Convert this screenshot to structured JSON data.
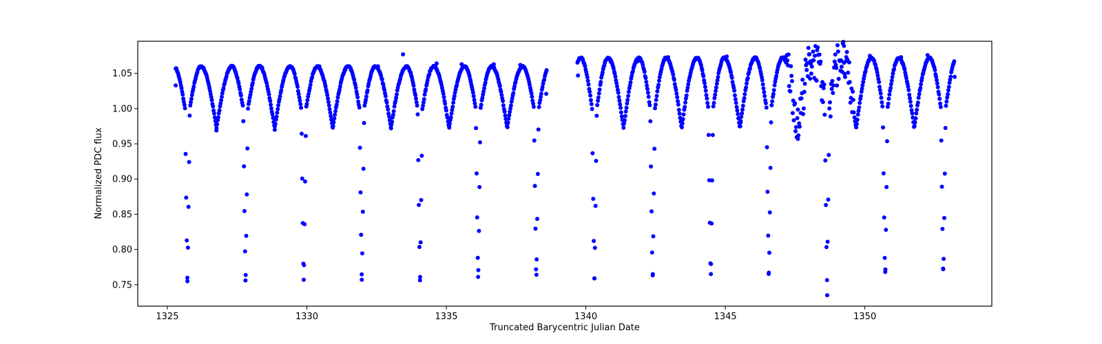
{
  "chart_data": {
    "type": "scatter",
    "title": "",
    "xlabel": "Truncated Barycentric Julian Date",
    "ylabel": "Normalized PDC flux",
    "xlim": [
      1323.94,
      1354.55
    ],
    "ylim": [
      0.7195,
      1.0956
    ],
    "xticks": [
      1325,
      1330,
      1335,
      1340,
      1345,
      1350
    ],
    "xtick_labels": [
      "1325",
      "1330",
      "1335",
      "1340",
      "1345",
      "1350"
    ],
    "yticks": [
      0.75,
      0.8,
      0.85,
      0.9,
      0.95,
      1.0,
      1.05
    ],
    "ytick_labels": [
      "0.75",
      "0.80",
      "0.85",
      "0.90",
      "0.95",
      "1.00",
      "1.05"
    ],
    "grid": false,
    "legend": null,
    "marker_color": "#0000ff",
    "marker_size": 3,
    "series": [
      {
        "name": "PDC flux",
        "model": {
          "description": "Eclipsing binary light curve: deep primary eclipses (~0.755) alternating with shallow secondary eclipses (~0.97–0.98), out-of-eclipse maxima ~1.06 (first orbit) to ~1.075 (second orbit)",
          "t_start": 1325.3,
          "t_end": 1353.22,
          "cadence_days": 0.0209,
          "gap": [
            1338.6,
            1339.7
          ],
          "primary_epoch": 1325.72,
          "period": 2.084,
          "primary_depth_min": 0.755,
          "primary_half_width": 0.085,
          "secondary_min": 0.972,
          "max_first_half": 1.06,
          "max_second_half": 1.072,
          "noisy_interval": [
            1347.2,
            1349.6
          ]
        },
        "key_points": [
          {
            "x": 1325.3,
            "y": 1.033
          },
          {
            "x": 1325.72,
            "y": 0.755
          },
          {
            "x": 1326.28,
            "y": 1.058
          },
          {
            "x": 1326.76,
            "y": 0.969
          },
          {
            "x": 1327.22,
            "y": 1.057
          },
          {
            "x": 1327.8,
            "y": 0.756
          },
          {
            "x": 1328.4,
            "y": 1.058
          },
          {
            "x": 1328.85,
            "y": 0.97
          },
          {
            "x": 1329.32,
            "y": 1.057
          },
          {
            "x": 1329.89,
            "y": 0.757
          },
          {
            "x": 1330.45,
            "y": 1.06
          },
          {
            "x": 1330.93,
            "y": 0.973
          },
          {
            "x": 1331.4,
            "y": 1.058
          },
          {
            "x": 1331.97,
            "y": 0.757
          },
          {
            "x": 1332.55,
            "y": 1.06
          },
          {
            "x": 1333.02,
            "y": 0.972
          },
          {
            "x": 1333.45,
            "y": 1.077
          },
          {
            "x": 1334.06,
            "y": 0.761
          },
          {
            "x": 1334.65,
            "y": 1.064
          },
          {
            "x": 1335.1,
            "y": 0.975
          },
          {
            "x": 1335.55,
            "y": 1.063
          },
          {
            "x": 1336.14,
            "y": 0.761
          },
          {
            "x": 1336.7,
            "y": 1.063
          },
          {
            "x": 1337.18,
            "y": 0.977
          },
          {
            "x": 1337.65,
            "y": 1.062
          },
          {
            "x": 1338.23,
            "y": 0.764
          },
          {
            "x": 1338.58,
            "y": 1.021
          },
          {
            "x": 1339.72,
            "y": 1.047
          },
          {
            "x": 1340.31,
            "y": 0.759
          },
          {
            "x": 1340.9,
            "y": 1.066
          },
          {
            "x": 1341.35,
            "y": 0.978
          },
          {
            "x": 1341.85,
            "y": 1.067
          },
          {
            "x": 1342.4,
            "y": 0.765
          },
          {
            "x": 1342.95,
            "y": 1.073
          },
          {
            "x": 1343.45,
            "y": 0.98
          },
          {
            "x": 1343.95,
            "y": 1.07
          },
          {
            "x": 1344.48,
            "y": 0.765
          },
          {
            "x": 1345.05,
            "y": 1.074
          },
          {
            "x": 1345.55,
            "y": 0.98
          },
          {
            "x": 1346.0,
            "y": 1.071
          },
          {
            "x": 1346.56,
            "y": 0.767
          },
          {
            "x": 1347.15,
            "y": 1.073
          },
          {
            "x": 1347.6,
            "y": 0.957
          },
          {
            "x": 1348.05,
            "y": 1.067
          },
          {
            "x": 1348.65,
            "y": 0.735
          },
          {
            "x": 1349.25,
            "y": 1.065
          },
          {
            "x": 1349.7,
            "y": 0.983
          },
          {
            "x": 1350.18,
            "y": 1.075
          },
          {
            "x": 1350.73,
            "y": 0.768
          },
          {
            "x": 1351.3,
            "y": 1.073
          },
          {
            "x": 1351.78,
            "y": 0.981
          },
          {
            "x": 1352.25,
            "y": 1.076
          },
          {
            "x": 1352.81,
            "y": 0.772
          },
          {
            "x": 1353.22,
            "y": 1.045
          }
        ]
      }
    ]
  }
}
